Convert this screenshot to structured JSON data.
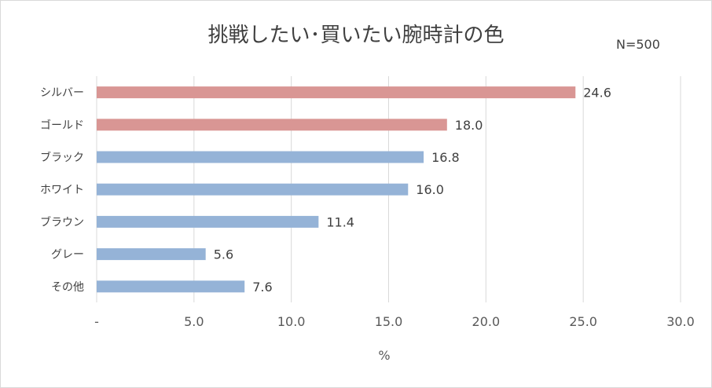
{
  "chart_data": {
    "type": "bar",
    "orientation": "horizontal",
    "title": "挑戦したい･買いたい腕時計の色",
    "sample_note": "N=500",
    "categories": [
      "シルバー",
      "ゴールド",
      "ブラック",
      "ホワイト",
      "ブラウン",
      "グレー",
      "その他"
    ],
    "values": [
      24.6,
      18.0,
      16.8,
      16.0,
      11.4,
      5.6,
      7.6
    ],
    "value_labels": [
      "24.6",
      "18.0",
      "16.8",
      "16.0",
      "11.4",
      "5.6",
      "7.6"
    ],
    "bar_colors": [
      "#d99694",
      "#d99694",
      "#95b3d7",
      "#95b3d7",
      "#95b3d7",
      "#95b3d7",
      "#95b3d7"
    ],
    "xlim": [
      0,
      30
    ],
    "x_ticks": [
      0,
      5,
      10,
      15,
      20,
      25,
      30
    ],
    "x_tick_labels": [
      "-",
      "5.0",
      "10.0",
      "15.0",
      "20.0",
      "25.0",
      "30.0"
    ],
    "xlabel": "%",
    "ylabel": "",
    "grid": true,
    "colors": {
      "gridline": "#d9d9d9",
      "text": "#404040"
    }
  }
}
